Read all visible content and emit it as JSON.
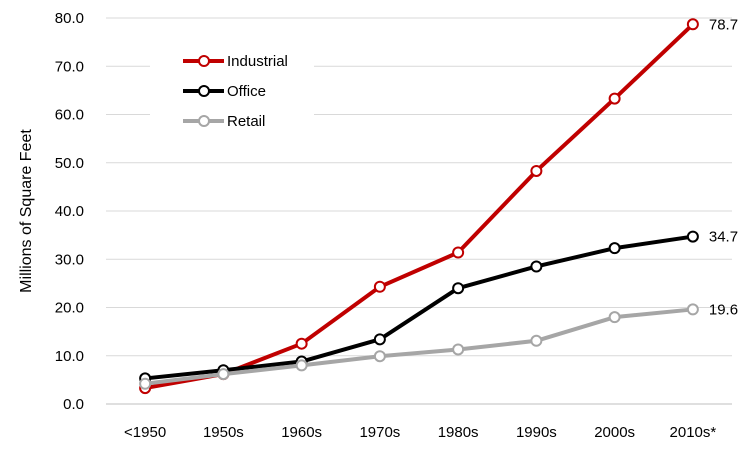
{
  "chart_data": {
    "type": "line",
    "title": "",
    "xlabel": "",
    "ylabel": "Millions of Square Feet",
    "ylim": [
      0,
      80
    ],
    "y_ticks": [
      "0.0",
      "10.0",
      "20.0",
      "30.0",
      "40.0",
      "50.0",
      "60.0",
      "70.0",
      "80.0"
    ],
    "grid": "horizontal",
    "legend_position": "top-left",
    "categories": [
      "<1950",
      "1950s",
      "1960s",
      "1970s",
      "1980s",
      "1990s",
      "2000s",
      "2010s*"
    ],
    "series": [
      {
        "name": "Industrial",
        "color": "#c00000",
        "values": [
          3.3,
          6.2,
          12.5,
          24.3,
          31.4,
          48.3,
          63.3,
          78.7
        ],
        "end_label": "78.7"
      },
      {
        "name": "Office",
        "color": "#000000",
        "values": [
          5.3,
          7.0,
          8.8,
          13.4,
          24.0,
          28.5,
          32.3,
          34.7
        ],
        "end_label": "34.7"
      },
      {
        "name": "Retail",
        "color": "#a6a6a6",
        "values": [
          4.2,
          6.2,
          8.0,
          9.9,
          11.3,
          13.1,
          18.0,
          19.6
        ],
        "end_label": "19.6"
      }
    ]
  }
}
